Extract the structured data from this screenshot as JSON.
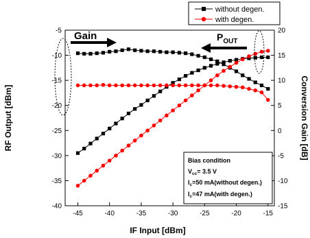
{
  "chart_data": {
    "type": "line",
    "title": "",
    "xlabel": "IF Input [dBm]",
    "ylabel_left": "RF Output [dBm]",
    "ylabel_right": "Conversion Gain [dB]",
    "xlim": [
      -47,
      -14
    ],
    "ylim_left": [
      -40,
      -5
    ],
    "ylim_right": [
      -15,
      20
    ],
    "x_ticks": [
      -45,
      -40,
      -35,
      -30,
      -25,
      -20,
      -15
    ],
    "y_ticks_left": [
      -40,
      -35,
      -30,
      -25,
      -20,
      -15,
      -10,
      -5
    ],
    "y_ticks_right": [
      -15,
      -10,
      -5,
      0,
      5,
      10,
      15,
      20
    ],
    "legend_position": "top-right",
    "series": [
      {
        "name": "without degen.",
        "axis": "left",
        "quantity": "RF Output",
        "color": "#000000",
        "marker": "square",
        "x": [
          -45,
          -44,
          -43,
          -42,
          -41,
          -40,
          -39,
          -38,
          -37,
          -36,
          -35,
          -34,
          -33,
          -32,
          -31,
          -30,
          -29,
          -28,
          -27,
          -26,
          -25,
          -24,
          -23,
          -22,
          -21,
          -20,
          -19,
          -18,
          -17,
          -16,
          -15
        ],
        "y": [
          -29.5,
          -28.6,
          -27.6,
          -26.6,
          -25.6,
          -24.6,
          -23.6,
          -22.6,
          -21.6,
          -20.7,
          -19.9,
          -19.0,
          -18.1,
          -17.2,
          -16.3,
          -15.5,
          -14.8,
          -14.1,
          -13.5,
          -13.0,
          -12.5,
          -12.1,
          -11.7,
          -11.4,
          -11.1,
          -10.9,
          -10.7,
          -10.6,
          -10.5,
          -10.4,
          -10.4
        ]
      },
      {
        "name": "without degen.",
        "axis": "right",
        "quantity": "Conversion Gain",
        "color": "#000000",
        "marker": "square",
        "x": [
          -45,
          -44,
          -43,
          -42,
          -41,
          -40,
          -39,
          -38,
          -37,
          -36,
          -35,
          -34,
          -33,
          -32,
          -31,
          -30,
          -29,
          -28,
          -27,
          -26,
          -25,
          -24,
          -23,
          -22,
          -21,
          -20,
          -19,
          -18,
          -17,
          -16,
          -15
        ],
        "y": [
          15.4,
          15.3,
          15.3,
          15.4,
          15.5,
          15.7,
          15.8,
          16.0,
          16.2,
          16.0,
          15.9,
          15.8,
          15.8,
          15.7,
          15.6,
          15.6,
          15.5,
          15.4,
          15.2,
          14.9,
          14.6,
          14.2,
          13.8,
          13.2,
          12.5,
          11.8,
          11.0,
          10.3,
          9.6,
          9.0,
          8.3
        ]
      },
      {
        "name": "with degen.",
        "axis": "left",
        "quantity": "RF Output",
        "color": "#ff0000",
        "marker": "circle",
        "x": [
          -45,
          -44,
          -43,
          -42,
          -41,
          -40,
          -39,
          -38,
          -37,
          -36,
          -35,
          -34,
          -33,
          -32,
          -31,
          -30,
          -29,
          -28,
          -27,
          -26,
          -25,
          -24,
          -23,
          -22,
          -21,
          -20,
          -19,
          -18,
          -17,
          -16,
          -15
        ],
        "y": [
          -36.0,
          -35.0,
          -34.0,
          -33.0,
          -32.0,
          -31.0,
          -30.0,
          -29.0,
          -28.0,
          -27.0,
          -26.0,
          -25.0,
          -24.0,
          -23.0,
          -22.0,
          -21.0,
          -20.0,
          -19.0,
          -18.0,
          -17.0,
          -16.0,
          -15.0,
          -14.0,
          -13.1,
          -12.3,
          -11.5,
          -10.8,
          -10.2,
          -9.7,
          -9.3,
          -9.1
        ]
      },
      {
        "name": "with degen.",
        "axis": "right",
        "quantity": "Conversion Gain",
        "color": "#ff0000",
        "marker": "circle",
        "x": [
          -45,
          -44,
          -43,
          -42,
          -41,
          -40,
          -39,
          -38,
          -37,
          -36,
          -35,
          -34,
          -33,
          -32,
          -31,
          -30,
          -29,
          -28,
          -27,
          -26,
          -25,
          -24,
          -23,
          -22,
          -21,
          -20,
          -19,
          -18,
          -17,
          -16,
          -15
        ],
        "y": [
          9.0,
          9.0,
          9.0,
          9.0,
          9.1,
          9.0,
          9.0,
          9.0,
          9.0,
          9.0,
          9.0,
          9.0,
          9.0,
          9.0,
          9.0,
          9.0,
          9.0,
          9.0,
          9.0,
          9.0,
          9.0,
          9.0,
          9.0,
          8.9,
          8.8,
          8.7,
          8.6,
          8.3,
          8.0,
          7.6,
          6.1
        ]
      }
    ],
    "annotations": {
      "gain_label": "Gain",
      "pout_label": "P",
      "pout_subscript": "OUT"
    },
    "bias_box": {
      "title": "Bias condition",
      "vcc_label": "V",
      "vcc_sub": "cc",
      "vcc_value": "= 3.5 V",
      "ic1_label": "I",
      "ic1_sub": "c",
      "ic1_value": "=50 mA(without degen.)",
      "ic2_label": "I",
      "ic2_sub": "c",
      "ic2_value": "=47 mA(with degen.)"
    }
  }
}
